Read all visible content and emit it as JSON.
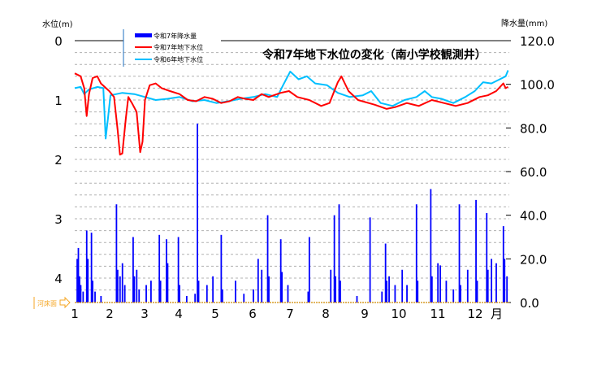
{
  "chart_data": {
    "type": "bar+line",
    "title": "令和7年地下水位の変化（南小学校観測井）",
    "ylabel_left": "水位(m)",
    "ylabel_right": "降水量(mm)",
    "x_unit_label": "月",
    "x_ticks": [
      "1",
      "2",
      "3",
      "4",
      "5",
      "6",
      "7",
      "8",
      "9",
      "10",
      "11",
      "12"
    ],
    "y_left_ticks": [
      "0",
      "1",
      "2",
      "3",
      "4"
    ],
    "y_left_range": [
      0,
      4.4
    ],
    "y_left_inverted": true,
    "y_right_ticks": [
      "120.0",
      "100.0",
      "80.0",
      "60.0",
      "40.0",
      "20.0",
      "0.0"
    ],
    "y_right_range": [
      0,
      120
    ],
    "riverbed_label": "河床面",
    "riverbed_depth_m": 4.4,
    "grid": "horizontal dashed",
    "legend_placement": "top-left",
    "colors": {
      "rain": "#0000ff",
      "gw2025": "#ff0000",
      "gw2024": "#00bfff",
      "riverbed": "#f5a623"
    },
    "series": [
      {
        "name": "令和7年降水量",
        "type": "bar",
        "axis": "right",
        "data": [
          [
            "01-03",
            20
          ],
          [
            "01-04",
            25
          ],
          [
            "01-05",
            12
          ],
          [
            "01-06",
            8
          ],
          [
            "01-08",
            5
          ],
          [
            "01-11",
            33
          ],
          [
            "01-12",
            20
          ],
          [
            "01-15",
            32
          ],
          [
            "01-16",
            10
          ],
          [
            "01-18",
            5
          ],
          [
            "01-23",
            3
          ],
          [
            "02-05",
            45
          ],
          [
            "02-06",
            15
          ],
          [
            "02-08",
            12
          ],
          [
            "02-10",
            18
          ],
          [
            "02-12",
            8
          ],
          [
            "02-19",
            30
          ],
          [
            "02-20",
            12
          ],
          [
            "02-22",
            15
          ],
          [
            "02-24",
            6
          ],
          [
            "03-02",
            8
          ],
          [
            "03-06",
            10
          ],
          [
            "03-13",
            31
          ],
          [
            "03-14",
            10
          ],
          [
            "03-19",
            29
          ],
          [
            "03-20",
            18
          ],
          [
            "03-29",
            30
          ],
          [
            "03-30",
            8
          ],
          [
            "04-05",
            3
          ],
          [
            "04-12",
            4
          ],
          [
            "04-14",
            82
          ],
          [
            "04-15",
            10
          ],
          [
            "04-22",
            8
          ],
          [
            "04-27",
            12
          ],
          [
            "05-04",
            31
          ],
          [
            "05-05",
            6
          ],
          [
            "05-16",
            10
          ],
          [
            "05-23",
            4
          ],
          [
            "05-31",
            6
          ],
          [
            "06-04",
            20
          ],
          [
            "06-07",
            15
          ],
          [
            "06-12",
            40
          ],
          [
            "06-13",
            12
          ],
          [
            "06-23",
            29
          ],
          [
            "06-24",
            14
          ],
          [
            "06-29",
            8
          ],
          [
            "07-16",
            5
          ],
          [
            "07-17",
            30
          ],
          [
            "08-04",
            15
          ],
          [
            "08-07",
            40
          ],
          [
            "08-08",
            12
          ],
          [
            "08-11",
            45
          ],
          [
            "08-12",
            10
          ],
          [
            "08-26",
            3
          ],
          [
            "09-06",
            39
          ],
          [
            "09-16",
            5
          ],
          [
            "09-19",
            27
          ],
          [
            "09-20",
            10
          ],
          [
            "09-22",
            12
          ],
          [
            "09-27",
            8
          ],
          [
            "10-03",
            15
          ],
          [
            "10-07",
            8
          ],
          [
            "10-15",
            45
          ],
          [
            "10-16",
            10
          ],
          [
            "10-27",
            52
          ],
          [
            "10-28",
            12
          ],
          [
            "11-02",
            18
          ],
          [
            "11-04",
            17
          ],
          [
            "11-09",
            10
          ],
          [
            "11-15",
            6
          ],
          [
            "11-20",
            45
          ],
          [
            "11-21",
            8
          ],
          [
            "11-27",
            15
          ],
          [
            "12-04",
            47
          ],
          [
            "12-05",
            10
          ],
          [
            "12-13",
            41
          ],
          [
            "12-14",
            15
          ],
          [
            "12-17",
            20
          ],
          [
            "12-21",
            18
          ],
          [
            "12-27",
            35
          ],
          [
            "12-28",
            20
          ],
          [
            "12-30",
            12
          ]
        ]
      },
      {
        "name": "令和7年地下水位",
        "type": "line",
        "axis": "left",
        "data": [
          [
            "01-01",
            0.55
          ],
          [
            "01-06",
            0.6
          ],
          [
            "01-09",
            0.8
          ],
          [
            "01-11",
            1.27
          ],
          [
            "01-13",
            0.9
          ],
          [
            "01-16",
            0.63
          ],
          [
            "01-20",
            0.6
          ],
          [
            "01-23",
            0.72
          ],
          [
            "01-30",
            0.85
          ],
          [
            "02-03",
            0.95
          ],
          [
            "02-06",
            1.5
          ],
          [
            "02-08",
            1.92
          ],
          [
            "02-10",
            1.9
          ],
          [
            "02-13",
            1.3
          ],
          [
            "02-15",
            0.95
          ],
          [
            "02-18",
            1.05
          ],
          [
            "02-22",
            1.2
          ],
          [
            "02-25",
            1.88
          ],
          [
            "02-27",
            1.7
          ],
          [
            "03-01",
            1.0
          ],
          [
            "03-05",
            0.75
          ],
          [
            "03-10",
            0.72
          ],
          [
            "03-15",
            0.8
          ],
          [
            "03-22",
            0.85
          ],
          [
            "03-30",
            0.9
          ],
          [
            "04-06",
            1.0
          ],
          [
            "04-13",
            1.02
          ],
          [
            "04-20",
            0.95
          ],
          [
            "04-27",
            0.98
          ],
          [
            "05-04",
            1.05
          ],
          [
            "05-11",
            1.02
          ],
          [
            "05-18",
            0.95
          ],
          [
            "05-24",
            0.98
          ],
          [
            "05-31",
            1.0
          ],
          [
            "06-07",
            0.9
          ],
          [
            "06-13",
            0.95
          ],
          [
            "06-23",
            0.88
          ],
          [
            "06-30",
            0.85
          ],
          [
            "07-07",
            0.95
          ],
          [
            "07-17",
            1.0
          ],
          [
            "07-27",
            1.1
          ],
          [
            "08-03",
            1.05
          ],
          [
            "08-10",
            0.7
          ],
          [
            "08-13",
            0.6
          ],
          [
            "08-19",
            0.85
          ],
          [
            "08-27",
            1.0
          ],
          [
            "09-10",
            1.08
          ],
          [
            "09-20",
            1.15
          ],
          [
            "09-27",
            1.12
          ],
          [
            "10-07",
            1.05
          ],
          [
            "10-17",
            1.1
          ],
          [
            "10-28",
            1.0
          ],
          [
            "11-07",
            1.05
          ],
          [
            "11-17",
            1.1
          ],
          [
            "11-27",
            1.05
          ],
          [
            "12-07",
            0.95
          ],
          [
            "12-14",
            0.92
          ],
          [
            "12-21",
            0.85
          ],
          [
            "12-27",
            0.72
          ],
          [
            "12-29",
            0.8
          ],
          [
            "12-31",
            0.78
          ]
        ]
      },
      {
        "name": "令和6年地下水位",
        "type": "line",
        "axis": "left",
        "data": [
          [
            "01-01",
            0.8
          ],
          [
            "01-06",
            0.78
          ],
          [
            "01-09",
            0.9
          ],
          [
            "01-13",
            0.82
          ],
          [
            "01-20",
            0.78
          ],
          [
            "01-25",
            0.8
          ],
          [
            "01-26",
            1.2
          ],
          [
            "01-27",
            1.65
          ],
          [
            "01-29",
            1.3
          ],
          [
            "01-31",
            0.92
          ],
          [
            "02-10",
            0.88
          ],
          [
            "02-20",
            0.9
          ],
          [
            "03-01",
            0.95
          ],
          [
            "03-10",
            1.0
          ],
          [
            "03-20",
            0.98
          ],
          [
            "03-30",
            0.95
          ],
          [
            "04-10",
            1.02
          ],
          [
            "04-20",
            1.0
          ],
          [
            "04-30",
            1.05
          ],
          [
            "05-10",
            1.02
          ],
          [
            "05-20",
            0.98
          ],
          [
            "05-31",
            0.95
          ],
          [
            "06-10",
            0.9
          ],
          [
            "06-20",
            0.95
          ],
          [
            "06-25",
            0.75
          ],
          [
            "07-01",
            0.52
          ],
          [
            "07-08",
            0.65
          ],
          [
            "07-15",
            0.6
          ],
          [
            "07-22",
            0.72
          ],
          [
            "08-01",
            0.75
          ],
          [
            "08-10",
            0.88
          ],
          [
            "08-20",
            0.95
          ],
          [
            "08-31",
            0.92
          ],
          [
            "09-07",
            0.85
          ],
          [
            "09-15",
            1.05
          ],
          [
            "09-25",
            1.1
          ],
          [
            "10-05",
            1.0
          ],
          [
            "10-15",
            0.95
          ],
          [
            "10-22",
            0.85
          ],
          [
            "10-28",
            0.95
          ],
          [
            "11-05",
            0.98
          ],
          [
            "11-15",
            1.05
          ],
          [
            "11-25",
            0.95
          ],
          [
            "12-03",
            0.85
          ],
          [
            "12-10",
            0.7
          ],
          [
            "12-17",
            0.72
          ],
          [
            "12-24",
            0.65
          ],
          [
            "12-29",
            0.6
          ],
          [
            "12-31",
            0.5
          ]
        ]
      }
    ]
  }
}
